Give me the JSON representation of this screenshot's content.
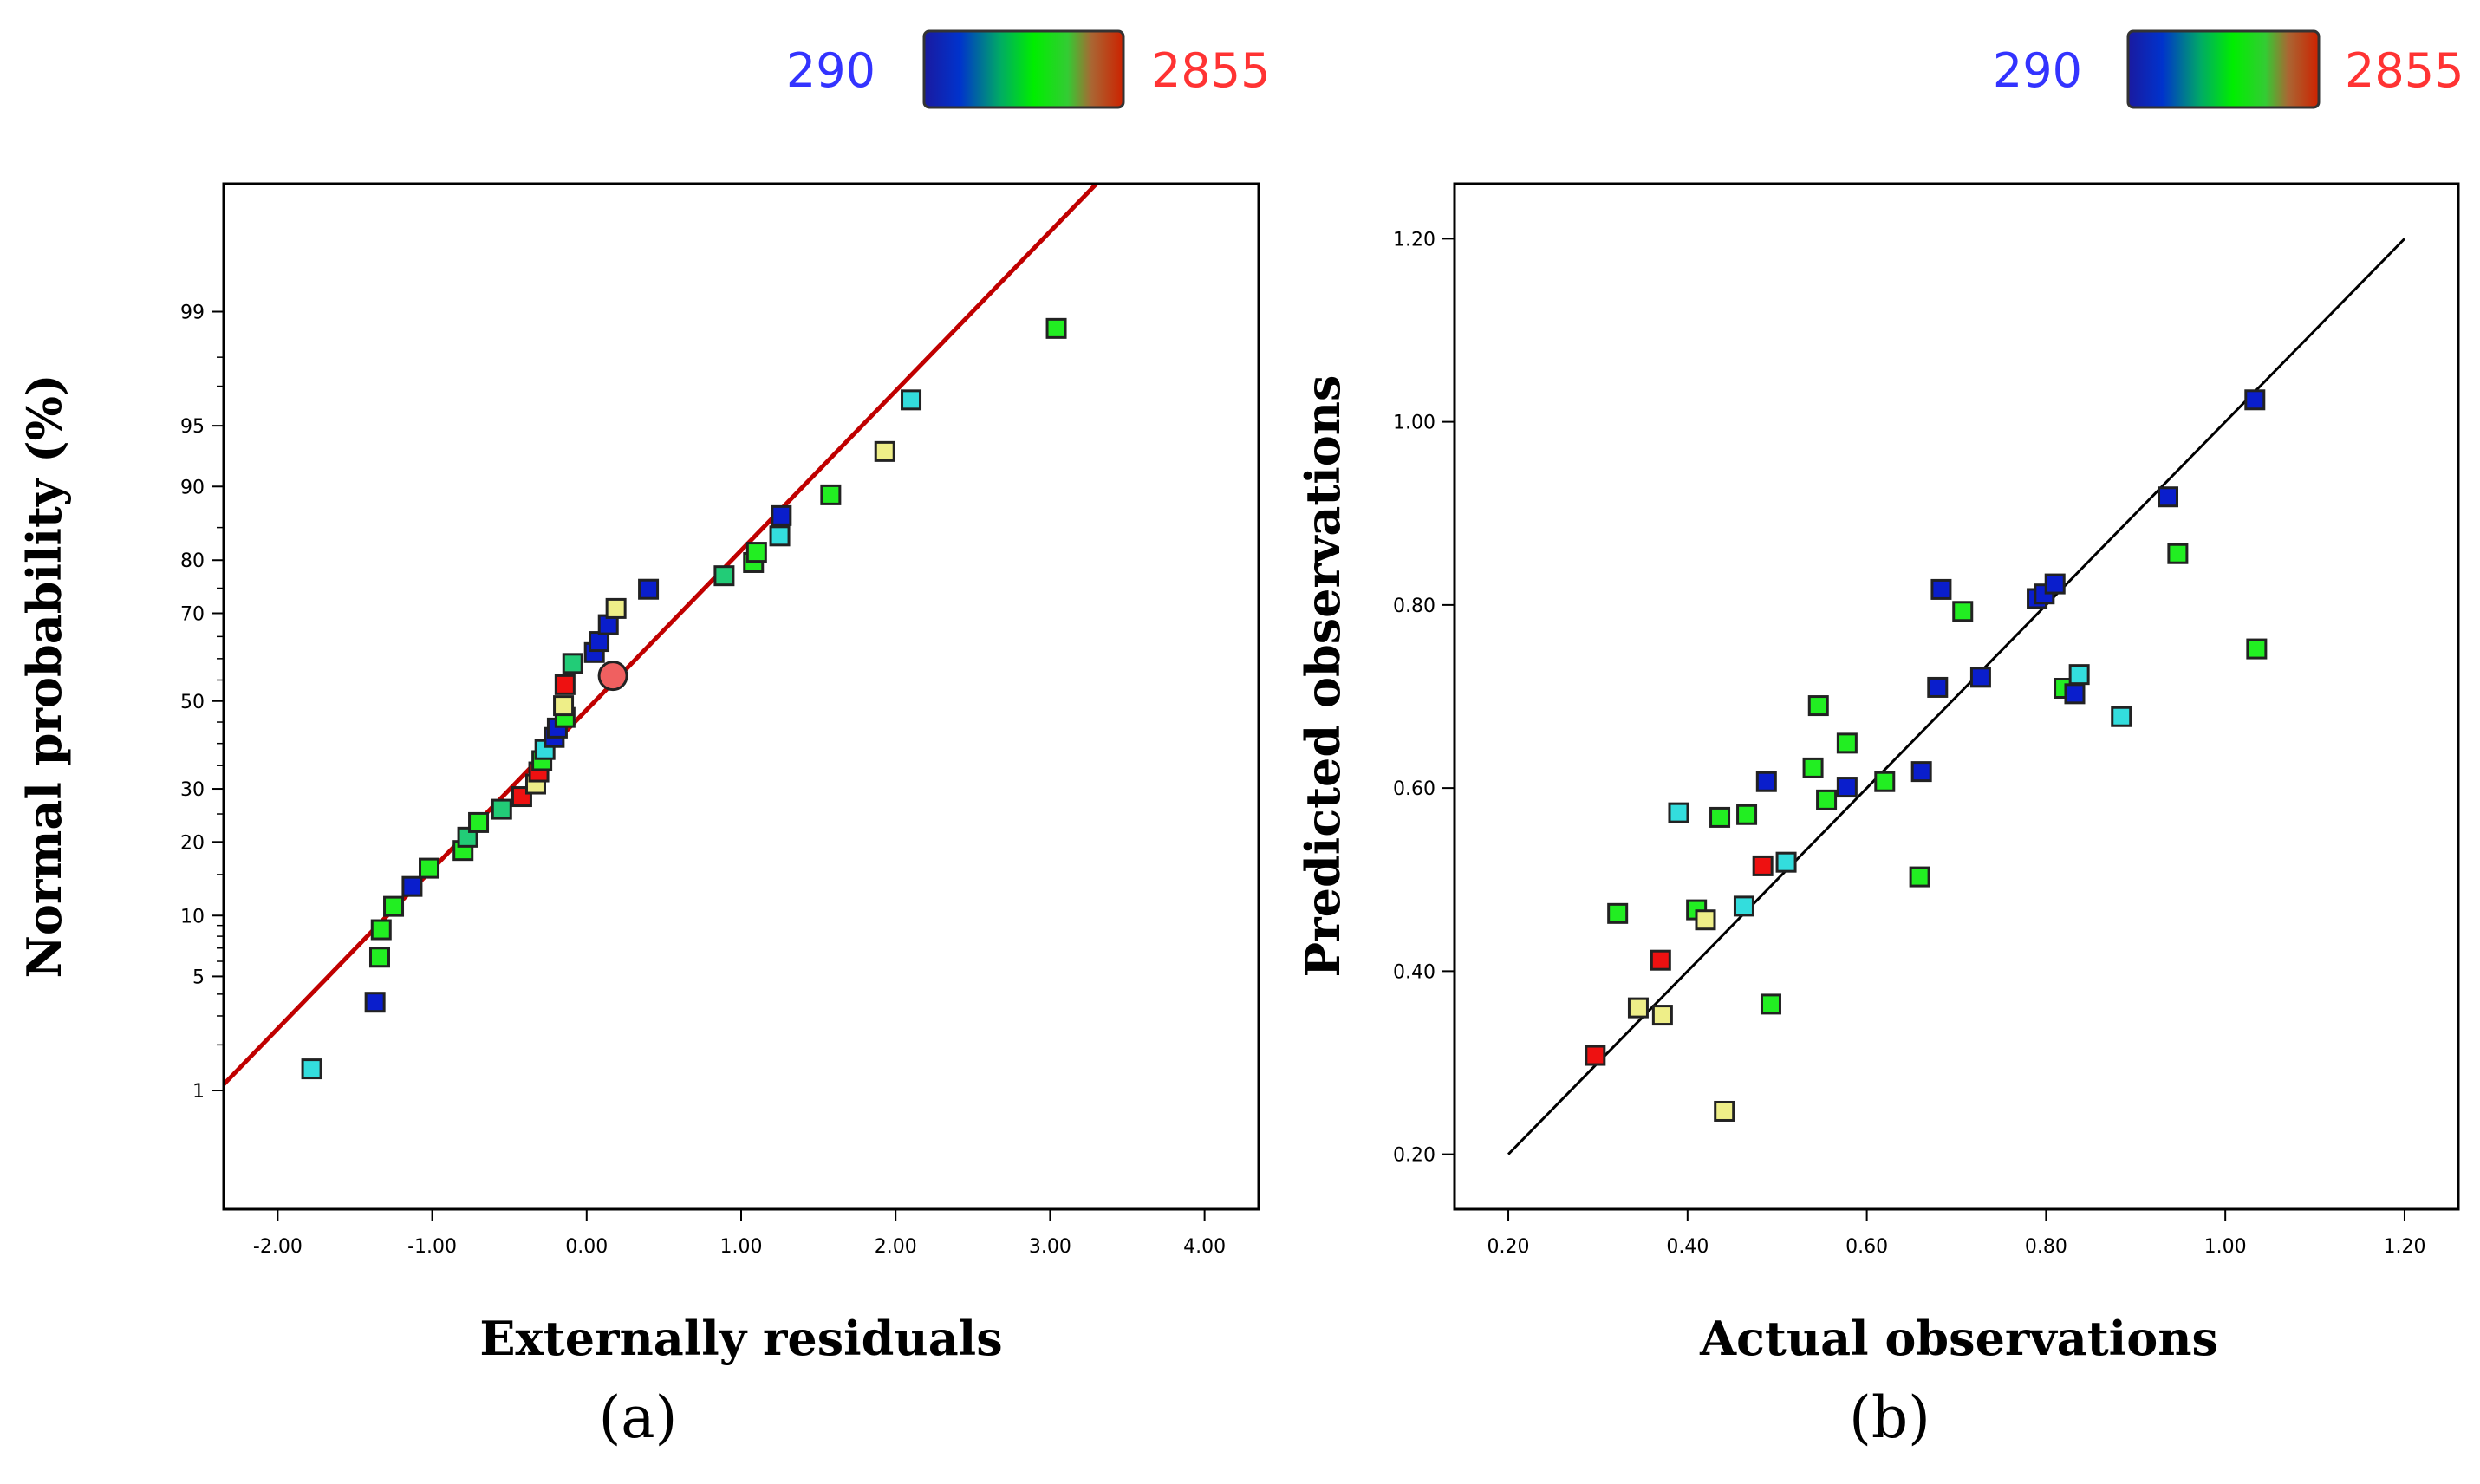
{
  "colors": {
    "low": "#3333ff",
    "high": "#ff3333",
    "colorbar": [
      "#1a1aa0",
      "#0033cc",
      "#00aa66",
      "#00ee00",
      "#33cc33",
      "#aa6633",
      "#cc2200"
    ],
    "fit_line_a": "#c00000",
    "fit_line_b": "#000000",
    "point_palette": {
      "blue": "#0a1ecc",
      "cyan": "#33dddd",
      "green": "#22ee22",
      "seagreen": "#22cc77",
      "yellow": "#eeee88",
      "red": "#ee1111"
    }
  },
  "colorbar": {
    "min_label": "290",
    "max_label": "2855"
  },
  "chart_data": [
    {
      "type": "scatter",
      "panel_label": "(a)",
      "xlabel": "Externally residuals",
      "ylabel": "Normal probability (%)",
      "xlim": [
        -2.35,
        4.35
      ],
      "xticks": [
        -2,
        -1,
        0,
        1,
        2,
        3,
        4
      ],
      "xtick_labels": [
        "-2.00",
        "-1.00",
        "0.00",
        "1.00",
        "2.00",
        "3.00",
        "4.00"
      ],
      "y_scale": "normal-probability",
      "ylim": [
        0.12,
        99.9
      ],
      "yticks": [
        1,
        5,
        10,
        20,
        30,
        50,
        70,
        80,
        90,
        95,
        99
      ],
      "ytick_labels": [
        "1",
        "5",
        "10",
        "20",
        "30",
        "50",
        "70",
        "80",
        "90",
        "95",
        "99"
      ],
      "fit_line": {
        "x": [
          -2.35,
          3.3
        ],
        "y": [
          1.1,
          99.9
        ]
      },
      "highlight": {
        "x": 0.17,
        "y": 56,
        "color": "red"
      },
      "points": [
        {
          "x": -1.78,
          "y": 1.4,
          "color": "cyan"
        },
        {
          "x": -1.37,
          "y": 3.6,
          "color": "blue"
        },
        {
          "x": -1.34,
          "y": 6.3,
          "color": "green"
        },
        {
          "x": -1.33,
          "y": 8.6,
          "color": "green"
        },
        {
          "x": -1.25,
          "y": 11.0,
          "color": "green"
        },
        {
          "x": -1.13,
          "y": 13.4,
          "color": "blue"
        },
        {
          "x": -1.02,
          "y": 15.9,
          "color": "green"
        },
        {
          "x": -0.8,
          "y": 18.6,
          "color": "green"
        },
        {
          "x": -0.77,
          "y": 20.8,
          "color": "seagreen"
        },
        {
          "x": -0.7,
          "y": 23.4,
          "color": "green"
        },
        {
          "x": -0.55,
          "y": 25.9,
          "color": "seagreen"
        },
        {
          "x": -0.42,
          "y": 28.4,
          "color": "red"
        },
        {
          "x": -0.33,
          "y": 31.0,
          "color": "yellow"
        },
        {
          "x": -0.31,
          "y": 33.6,
          "color": "red"
        },
        {
          "x": -0.29,
          "y": 36.1,
          "color": "green"
        },
        {
          "x": -0.27,
          "y": 38.6,
          "color": "cyan"
        },
        {
          "x": -0.21,
          "y": 41.4,
          "color": "blue"
        },
        {
          "x": -0.19,
          "y": 43.6,
          "color": "blue"
        },
        {
          "x": -0.14,
          "y": 46.1,
          "color": "green"
        },
        {
          "x": -0.15,
          "y": 48.9,
          "color": "yellow"
        },
        {
          "x": -0.14,
          "y": 53.9,
          "color": "red"
        },
        {
          "x": -0.09,
          "y": 58.9,
          "color": "seagreen"
        },
        {
          "x": 0.05,
          "y": 61.4,
          "color": "blue"
        },
        {
          "x": 0.08,
          "y": 63.9,
          "color": "blue"
        },
        {
          "x": 0.14,
          "y": 67.6,
          "color": "blue"
        },
        {
          "x": 0.19,
          "y": 71.0,
          "color": "yellow"
        },
        {
          "x": 0.4,
          "y": 74.8,
          "color": "blue"
        },
        {
          "x": 0.89,
          "y": 77.3,
          "color": "seagreen"
        },
        {
          "x": 1.08,
          "y": 79.6,
          "color": "green"
        },
        {
          "x": 1.1,
          "y": 81.3,
          "color": "green"
        },
        {
          "x": 1.25,
          "y": 83.8,
          "color": "cyan"
        },
        {
          "x": 1.26,
          "y": 86.6,
          "color": "blue"
        },
        {
          "x": 1.58,
          "y": 89.1,
          "color": "green"
        },
        {
          "x": 1.93,
          "y": 93.2,
          "color": "yellow"
        },
        {
          "x": 2.1,
          "y": 96.4,
          "color": "cyan"
        },
        {
          "x": 3.04,
          "y": 98.7,
          "color": "green"
        }
      ]
    },
    {
      "type": "scatter",
      "panel_label": "(b)",
      "xlabel": "Actual observations",
      "ylabel": "Predicted observations",
      "xlim": [
        0.14,
        1.26
      ],
      "ylim": [
        0.14,
        1.26
      ],
      "xticks": [
        0.2,
        0.4,
        0.6,
        0.8,
        1.0,
        1.2
      ],
      "xtick_labels": [
        "0.20",
        "0.40",
        "0.60",
        "0.80",
        "1.00",
        "1.20"
      ],
      "yticks": [
        0.2,
        0.4,
        0.6,
        0.8,
        1.0,
        1.2
      ],
      "ytick_labels": [
        "0.20",
        "0.40",
        "0.60",
        "0.80",
        "1.00",
        "1.20"
      ],
      "fit_line": {
        "x": [
          0.2,
          1.2
        ],
        "y": [
          0.2,
          1.2
        ]
      },
      "points": [
        {
          "x": 0.297,
          "y": 0.308,
          "color": "red"
        },
        {
          "x": 0.322,
          "y": 0.463,
          "color": "green"
        },
        {
          "x": 0.345,
          "y": 0.36,
          "color": "yellow"
        },
        {
          "x": 0.372,
          "y": 0.352,
          "color": "yellow"
        },
        {
          "x": 0.37,
          "y": 0.412,
          "color": "red"
        },
        {
          "x": 0.39,
          "y": 0.573,
          "color": "cyan"
        },
        {
          "x": 0.41,
          "y": 0.467,
          "color": "green"
        },
        {
          "x": 0.42,
          "y": 0.456,
          "color": "yellow"
        },
        {
          "x": 0.436,
          "y": 0.568,
          "color": "green"
        },
        {
          "x": 0.441,
          "y": 0.247,
          "color": "yellow"
        },
        {
          "x": 0.463,
          "y": 0.471,
          "color": "cyan"
        },
        {
          "x": 0.466,
          "y": 0.571,
          "color": "green"
        },
        {
          "x": 0.484,
          "y": 0.515,
          "color": "red"
        },
        {
          "x": 0.488,
          "y": 0.607,
          "color": "blue"
        },
        {
          "x": 0.493,
          "y": 0.364,
          "color": "green"
        },
        {
          "x": 0.51,
          "y": 0.519,
          "color": "cyan"
        },
        {
          "x": 0.54,
          "y": 0.622,
          "color": "green"
        },
        {
          "x": 0.546,
          "y": 0.69,
          "color": "green"
        },
        {
          "x": 0.555,
          "y": 0.587,
          "color": "green"
        },
        {
          "x": 0.578,
          "y": 0.601,
          "color": "blue"
        },
        {
          "x": 0.578,
          "y": 0.649,
          "color": "green"
        },
        {
          "x": 0.62,
          "y": 0.607,
          "color": "green"
        },
        {
          "x": 0.659,
          "y": 0.503,
          "color": "green"
        },
        {
          "x": 0.661,
          "y": 0.618,
          "color": "blue"
        },
        {
          "x": 0.679,
          "y": 0.71,
          "color": "blue"
        },
        {
          "x": 0.683,
          "y": 0.817,
          "color": "blue"
        },
        {
          "x": 0.707,
          "y": 0.793,
          "color": "green"
        },
        {
          "x": 0.727,
          "y": 0.721,
          "color": "blue"
        },
        {
          "x": 0.79,
          "y": 0.807,
          "color": "blue"
        },
        {
          "x": 0.798,
          "y": 0.812,
          "color": "blue"
        },
        {
          "x": 0.81,
          "y": 0.823,
          "color": "blue"
        },
        {
          "x": 0.82,
          "y": 0.709,
          "color": "green"
        },
        {
          "x": 0.832,
          "y": 0.703,
          "color": "blue"
        },
        {
          "x": 0.837,
          "y": 0.724,
          "color": "cyan"
        },
        {
          "x": 0.884,
          "y": 0.678,
          "color": "cyan"
        },
        {
          "x": 0.936,
          "y": 0.918,
          "color": "blue"
        },
        {
          "x": 0.947,
          "y": 0.856,
          "color": "green"
        },
        {
          "x": 1.033,
          "y": 1.024,
          "color": "blue"
        },
        {
          "x": 1.035,
          "y": 0.752,
          "color": "green"
        }
      ]
    }
  ]
}
